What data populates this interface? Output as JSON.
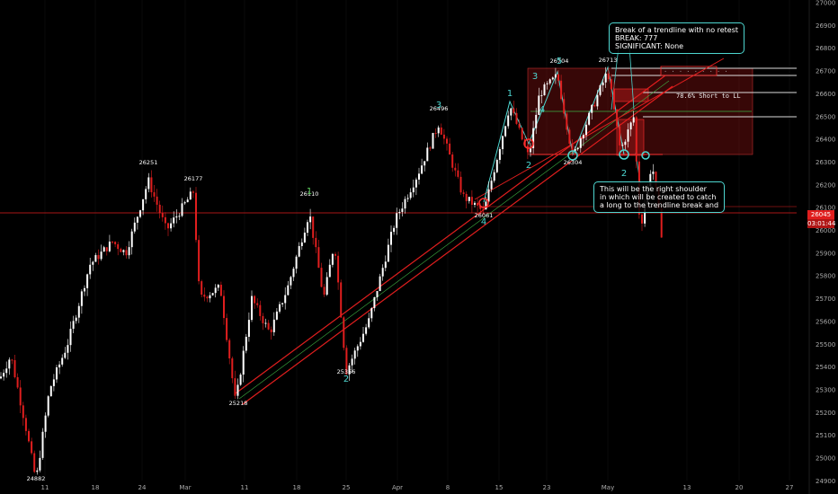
{
  "chart_data": {
    "type": "candlestick",
    "price_ticks": [
      24900,
      25000,
      25100,
      25200,
      25300,
      25400,
      25500,
      25600,
      25700,
      25800,
      25900,
      26000,
      26100,
      26200,
      26300,
      26400,
      26500,
      26600,
      26700,
      26800,
      26900,
      27000
    ],
    "ylim": [
      24860,
      27030
    ],
    "x_ticks": [
      "11",
      "18",
      "24",
      "Mar",
      "11",
      "18",
      "25",
      "Apr",
      "8",
      "15",
      "23",
      "May",
      "13",
      "20",
      "27"
    ],
    "current_price": "26045",
    "countdown": "03:01:44",
    "pivot_labels": [
      "24882",
      "25218",
      "25356",
      "26251",
      "26177",
      "26110",
      "26496",
      "26061",
      "26304",
      "26704",
      "26713"
    ],
    "wave_labels": [
      "1",
      "2",
      "3",
      "4",
      "5",
      "1",
      "2",
      "3",
      "4",
      "2",
      "4"
    ],
    "levels_text": [
      "78.6% Short to LL"
    ],
    "notes": [
      "Break of a trendline with no retest\nBREAK: 777\nSIGNIFICANT: None",
      "This will be the right shoulder\nin which will be created to catch\na long to the trendline break and"
    ],
    "colors": {
      "bull": "#ffffff",
      "bear": "#e01e1e",
      "accent": "#4dd6d0",
      "trend": "#e01e1e",
      "trend_mid": "#3cb043"
    }
  }
}
